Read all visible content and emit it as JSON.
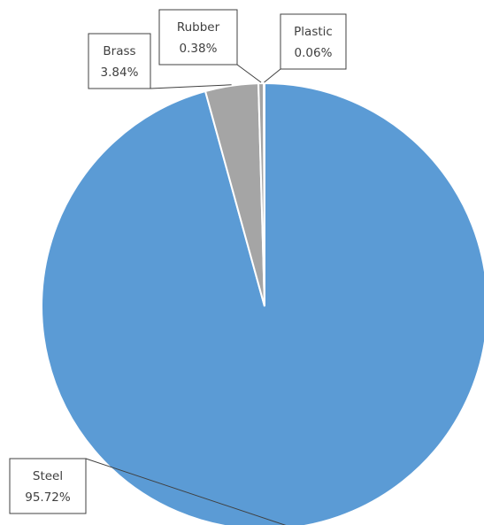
{
  "chart_data": {
    "type": "pie",
    "title": "",
    "categories": [
      "Steel",
      "Brass",
      "Rubber",
      "Plastic"
    ],
    "values": [
      95.72,
      3.84,
      0.38,
      0.06
    ],
    "value_labels": [
      "95.72%",
      "3.84%",
      "0.38%",
      "0.06%"
    ],
    "colors": [
      "#5B9BD5",
      "#A5A5A5",
      "#A5A5A5",
      "#5B9BD5"
    ],
    "legend": "none",
    "data_labels": "callouts with category name and percentage"
  }
}
